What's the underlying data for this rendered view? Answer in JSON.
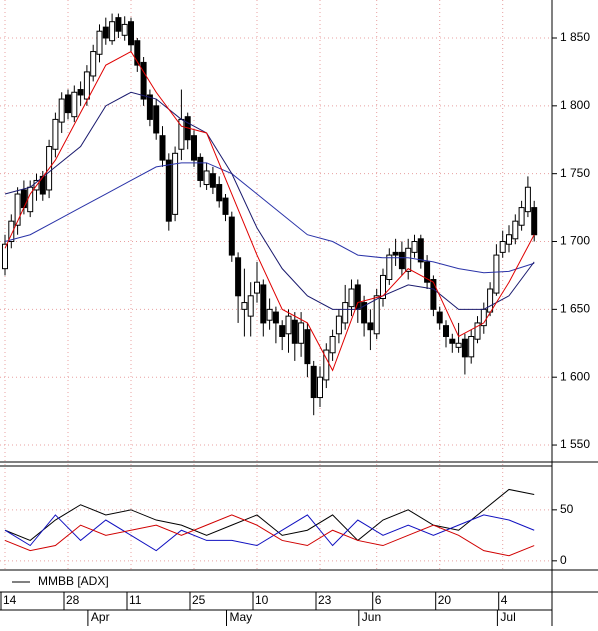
{
  "chart_data": [
    {
      "type": "candlestick",
      "categories": [
        "14",
        null,
        null,
        null,
        null,
        null,
        null,
        null,
        null,
        null,
        "28",
        null,
        null,
        null,
        null,
        null,
        null,
        null,
        null,
        null,
        "11",
        null,
        null,
        null,
        null,
        null,
        null,
        null,
        null,
        null,
        "25",
        null,
        null,
        null,
        null,
        null,
        null,
        null,
        null,
        null,
        "10",
        null,
        null,
        null,
        null,
        null,
        null,
        null,
        null,
        null,
        "23",
        null,
        null,
        null,
        null,
        null,
        null,
        null,
        null,
        "6",
        null,
        null,
        null,
        null,
        null,
        null,
        null,
        null,
        null,
        "20",
        null,
        null,
        null,
        null,
        null,
        null,
        null,
        null,
        null,
        "4",
        null,
        null,
        null,
        null,
        null
      ],
      "months": [
        null,
        null,
        null,
        null,
        null,
        null,
        null,
        null,
        null,
        null,
        null,
        null,
        null,
        "Apr",
        null,
        null,
        null,
        null,
        null,
        null,
        null,
        null,
        null,
        null,
        null,
        null,
        null,
        null,
        null,
        null,
        null,
        null,
        null,
        null,
        null,
        "May",
        null,
        null,
        null,
        null,
        null,
        null,
        null,
        null,
        null,
        null,
        null,
        null,
        null,
        null,
        null,
        null,
        null,
        null,
        null,
        null,
        "Jun",
        null,
        null,
        null,
        null,
        null,
        null,
        null,
        null,
        null,
        null,
        null,
        null,
        null,
        null,
        null,
        null,
        null,
        null,
        null,
        null,
        null,
        "Jul",
        null,
        null,
        null,
        null,
        null,
        null
      ],
      "ohlc": [
        [
          1680,
          1705,
          1675,
          1698
        ],
        [
          1700,
          1720,
          1695,
          1715
        ],
        [
          1712,
          1740,
          1705,
          1735
        ],
        [
          1738,
          1745,
          1720,
          1725
        ],
        [
          1722,
          1745,
          1718,
          1740
        ],
        [
          1738,
          1750,
          1730,
          1745
        ],
        [
          1748,
          1752,
          1730,
          1735
        ],
        [
          1738,
          1775,
          1732,
          1770
        ],
        [
          1768,
          1795,
          1762,
          1790
        ],
        [
          1788,
          1810,
          1780,
          1805
        ],
        [
          1808,
          1812,
          1790,
          1795
        ],
        [
          1792,
          1815,
          1788,
          1810
        ],
        [
          1812,
          1818,
          1800,
          1808
        ],
        [
          1805,
          1830,
          1800,
          1825
        ],
        [
          1822,
          1845,
          1818,
          1840
        ],
        [
          1838,
          1860,
          1832,
          1855
        ],
        [
          1858,
          1865,
          1845,
          1850
        ],
        [
          1848,
          1868,
          1845,
          1862
        ],
        [
          1865,
          1868,
          1850,
          1855
        ],
        [
          1852,
          1866,
          1848,
          1860
        ],
        [
          1862,
          1865,
          1840,
          1845
        ],
        [
          1848,
          1850,
          1825,
          1830
        ],
        [
          1832,
          1836,
          1800,
          1805
        ],
        [
          1808,
          1812,
          1785,
          1790
        ],
        [
          1800,
          1805,
          1775,
          1780
        ],
        [
          1778,
          1785,
          1755,
          1760
        ],
        [
          1760,
          1765,
          1708,
          1715
        ],
        [
          1720,
          1770,
          1715,
          1765
        ],
        [
          1768,
          1812,
          1760,
          1790
        ],
        [
          1792,
          1795,
          1768,
          1775
        ],
        [
          1778,
          1782,
          1755,
          1760
        ],
        [
          1762,
          1765,
          1740,
          1745
        ],
        [
          1742,
          1758,
          1738,
          1752
        ],
        [
          1750,
          1755,
          1735,
          1740
        ],
        [
          1742,
          1748,
          1725,
          1730
        ],
        [
          1732,
          1735,
          1715,
          1720
        ],
        [
          1718,
          1722,
          1685,
          1690
        ],
        [
          1688,
          1692,
          1640,
          1660
        ],
        [
          1650,
          1680,
          1630,
          1655
        ],
        [
          1645,
          1670,
          1630,
          1660
        ],
        [
          1662,
          1685,
          1655,
          1670
        ],
        [
          1668,
          1672,
          1630,
          1640
        ],
        [
          1642,
          1658,
          1635,
          1650
        ],
        [
          1648,
          1652,
          1625,
          1640
        ],
        [
          1638,
          1642,
          1620,
          1630
        ],
        [
          1632,
          1650,
          1618,
          1645
        ],
        [
          1642,
          1648,
          1612,
          1625
        ],
        [
          1625,
          1648,
          1615,
          1640
        ],
        [
          1635,
          1640,
          1600,
          1610
        ],
        [
          1608,
          1612,
          1572,
          1585
        ],
        [
          1585,
          1608,
          1578,
          1600
        ],
        [
          1598,
          1625,
          1592,
          1620
        ],
        [
          1618,
          1635,
          1612,
          1630
        ],
        [
          1632,
          1650,
          1625,
          1645
        ],
        [
          1640,
          1668,
          1635,
          1655
        ],
        [
          1652,
          1672,
          1645,
          1665
        ],
        [
          1668,
          1672,
          1640,
          1650
        ],
        [
          1655,
          1660,
          1630,
          1640
        ],
        [
          1640,
          1650,
          1620,
          1635
        ],
        [
          1632,
          1665,
          1628,
          1660
        ],
        [
          1658,
          1680,
          1652,
          1675
        ],
        [
          1672,
          1695,
          1668,
          1690
        ],
        [
          1692,
          1702,
          1682,
          1690
        ],
        [
          1692,
          1700,
          1675,
          1680
        ],
        [
          1678,
          1702,
          1672,
          1695
        ],
        [
          1692,
          1705,
          1688,
          1700
        ],
        [
          1702,
          1705,
          1680,
          1685
        ],
        [
          1685,
          1690,
          1665,
          1670
        ],
        [
          1672,
          1675,
          1645,
          1650
        ],
        [
          1648,
          1652,
          1635,
          1640
        ],
        [
          1638,
          1642,
          1622,
          1630
        ],
        [
          1628,
          1632,
          1618,
          1625
        ],
        [
          1622,
          1640,
          1618,
          1625
        ],
        [
          1628,
          1632,
          1602,
          1615
        ],
        [
          1615,
          1635,
          1610,
          1630
        ],
        [
          1628,
          1645,
          1625,
          1640
        ],
        [
          1638,
          1655,
          1632,
          1650
        ],
        [
          1648,
          1670,
          1645,
          1665
        ],
        [
          1662,
          1698,
          1660,
          1690
        ],
        [
          1692,
          1708,
          1688,
          1700
        ],
        [
          1698,
          1712,
          1692,
          1705
        ],
        [
          1702,
          1720,
          1698,
          1715
        ],
        [
          1712,
          1730,
          1708,
          1725
        ],
        [
          1722,
          1748,
          1718,
          1740
        ],
        [
          1725,
          1730,
          1700,
          1705
        ]
      ],
      "series": [
        {
          "color": "#2a33a8",
          "x": [
            0,
            4,
            8,
            12,
            16,
            20,
            24,
            28,
            32,
            36,
            40,
            44,
            48,
            52,
            56,
            60,
            64,
            68,
            72,
            76,
            80,
            84
          ],
          "values": [
            1700,
            1705,
            1715,
            1725,
            1735,
            1745,
            1755,
            1758,
            1758,
            1750,
            1735,
            1720,
            1705,
            1700,
            1690,
            1688,
            1688,
            1685,
            1680,
            1677,
            1678,
            1684
          ]
        },
        {
          "color": "#1a1a6e",
          "x": [
            0,
            4,
            8,
            12,
            16,
            20,
            24,
            28,
            32,
            36,
            40,
            44,
            48,
            52,
            56,
            60,
            64,
            68,
            72,
            76,
            80,
            84
          ],
          "values": [
            1735,
            1740,
            1755,
            1770,
            1800,
            1810,
            1805,
            1790,
            1780,
            1750,
            1710,
            1680,
            1660,
            1650,
            1650,
            1660,
            1668,
            1665,
            1650,
            1650,
            1660,
            1685
          ]
        },
        {
          "color": "#e00000",
          "x": [
            0,
            4,
            8,
            12,
            16,
            20,
            24,
            28,
            32,
            36,
            40,
            44,
            48,
            52,
            56,
            60,
            64,
            68,
            72,
            76,
            80,
            84
          ],
          "values": [
            1695,
            1735,
            1760,
            1795,
            1830,
            1840,
            1810,
            1785,
            1780,
            1735,
            1690,
            1650,
            1640,
            1605,
            1655,
            1660,
            1680,
            1670,
            1630,
            1640,
            1670,
            1705
          ]
        }
      ],
      "ylim": [
        1537.5,
        1878
      ],
      "yticks": [
        {
          "value": 1550,
          "label": "1 550"
        },
        {
          "value": 1600,
          "label": "1 600"
        },
        {
          "value": 1650,
          "label": "1 650"
        },
        {
          "value": 1700,
          "label": "1 700"
        },
        {
          "value": 1750,
          "label": "1 750"
        },
        {
          "value": 1800,
          "label": "1 800"
        },
        {
          "value": 1850,
          "label": "1 850"
        }
      ],
      "grid": true
    },
    {
      "type": "line",
      "series": [
        {
          "name": "MMBB [ADX]",
          "color": "#000000",
          "x": [
            0,
            4,
            8,
            12,
            16,
            20,
            24,
            28,
            32,
            36,
            40,
            44,
            48,
            52,
            56,
            60,
            64,
            68,
            72,
            76,
            80,
            84
          ],
          "values": [
            30,
            20,
            40,
            55,
            45,
            50,
            40,
            35,
            25,
            35,
            45,
            25,
            30,
            45,
            20,
            40,
            50,
            35,
            30,
            50,
            70,
            65
          ]
        },
        {
          "color": "#1010c0",
          "x": [
            0,
            4,
            8,
            12,
            16,
            20,
            24,
            28,
            32,
            36,
            40,
            44,
            48,
            52,
            56,
            60,
            64,
            68,
            72,
            76,
            80,
            84
          ],
          "values": [
            30,
            15,
            45,
            20,
            40,
            25,
            10,
            30,
            20,
            20,
            15,
            30,
            45,
            15,
            40,
            25,
            35,
            25,
            35,
            45,
            40,
            30
          ]
        },
        {
          "color": "#d00000",
          "x": [
            0,
            4,
            8,
            12,
            16,
            20,
            24,
            28,
            32,
            36,
            40,
            44,
            48,
            52,
            56,
            60,
            64,
            68,
            72,
            76,
            80,
            84
          ],
          "values": [
            20,
            10,
            15,
            35,
            25,
            30,
            35,
            25,
            35,
            45,
            35,
            20,
            15,
            30,
            20,
            15,
            25,
            35,
            25,
            10,
            5,
            15
          ]
        }
      ],
      "ylim": [
        -9,
        93
      ],
      "yticks": [
        0,
        50
      ],
      "grid": true
    }
  ]
}
